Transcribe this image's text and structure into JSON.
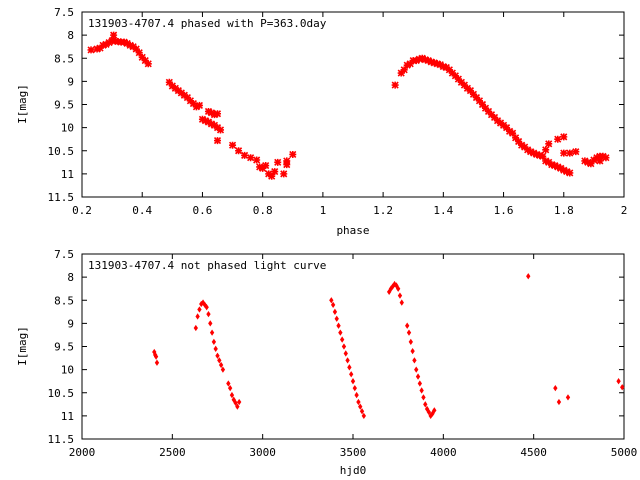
{
  "colors": {
    "points": "#ff0000",
    "axis": "#000000",
    "background": "#ffffff"
  },
  "chart_data": [
    {
      "type": "scatter",
      "title": "131903-4707.4 phased with P=363.0day",
      "xlabel": "phase",
      "ylabel": "I[mag]",
      "xlim": [
        0.2,
        2.0
      ],
      "ylim": [
        7.5,
        11.5
      ],
      "y_inverted": true,
      "grid": false,
      "xticks": [
        0.2,
        0.4,
        0.6,
        0.8,
        1.0,
        1.2,
        1.4,
        1.6,
        1.8,
        2.0
      ],
      "xtick_labels": [
        "0.2",
        "0.4",
        "0.6",
        "0.8",
        "1",
        "1.2",
        "1.4",
        "1.6",
        "1.8",
        "2"
      ],
      "yticks": [
        7.5,
        8,
        8.5,
        9,
        9.5,
        10,
        10.5,
        11,
        11.5
      ],
      "ytick_labels": [
        "7.5",
        "8",
        "8.5",
        "9",
        "9.5",
        "10",
        "10.5",
        "11",
        "11.5"
      ],
      "marker": "cross",
      "points": [
        [
          0.23,
          8.32
        ],
        [
          0.25,
          8.3
        ],
        [
          0.26,
          8.28
        ],
        [
          0.27,
          8.22
        ],
        [
          0.28,
          8.2
        ],
        [
          0.29,
          8.16
        ],
        [
          0.3,
          8.12
        ],
        [
          0.305,
          8.0
        ],
        [
          0.31,
          8.13
        ],
        [
          0.32,
          8.14
        ],
        [
          0.33,
          8.15
        ],
        [
          0.34,
          8.15
        ],
        [
          0.35,
          8.18
        ],
        [
          0.36,
          8.22
        ],
        [
          0.37,
          8.25
        ],
        [
          0.38,
          8.3
        ],
        [
          0.39,
          8.38
        ],
        [
          0.4,
          8.48
        ],
        [
          0.41,
          8.55
        ],
        [
          0.42,
          8.62
        ],
        [
          0.49,
          9.02
        ],
        [
          0.5,
          9.1
        ],
        [
          0.51,
          9.15
        ],
        [
          0.52,
          9.2
        ],
        [
          0.53,
          9.25
        ],
        [
          0.54,
          9.3
        ],
        [
          0.55,
          9.35
        ],
        [
          0.56,
          9.42
        ],
        [
          0.57,
          9.48
        ],
        [
          0.58,
          9.55
        ],
        [
          0.59,
          9.52
        ],
        [
          0.6,
          9.82
        ],
        [
          0.61,
          9.85
        ],
        [
          0.62,
          9.88
        ],
        [
          0.63,
          9.92
        ],
        [
          0.62,
          9.65
        ],
        [
          0.63,
          9.68
        ],
        [
          0.64,
          9.72
        ],
        [
          0.65,
          9.7
        ],
        [
          0.64,
          9.95
        ],
        [
          0.65,
          10.0
        ],
        [
          0.66,
          10.05
        ],
        [
          0.65,
          10.28
        ],
        [
          0.7,
          10.38
        ],
        [
          0.72,
          10.5
        ],
        [
          0.74,
          10.6
        ],
        [
          0.76,
          10.65
        ],
        [
          0.78,
          10.7
        ],
        [
          0.79,
          10.85
        ],
        [
          0.8,
          10.88
        ],
        [
          0.81,
          10.82
        ],
        [
          0.82,
          11.0
        ],
        [
          0.83,
          11.05
        ],
        [
          0.84,
          10.95
        ],
        [
          0.85,
          10.75
        ],
        [
          0.87,
          11.0
        ],
        [
          0.88,
          10.8
        ],
        [
          0.9,
          10.58
        ],
        [
          0.88,
          10.72
        ],
        [
          1.24,
          9.08
        ],
        [
          1.26,
          8.82
        ],
        [
          1.27,
          8.75
        ],
        [
          1.28,
          8.65
        ],
        [
          1.29,
          8.62
        ],
        [
          1.3,
          8.55
        ],
        [
          1.31,
          8.55
        ],
        [
          1.32,
          8.52
        ],
        [
          1.33,
          8.5
        ],
        [
          1.34,
          8.53
        ],
        [
          1.35,
          8.55
        ],
        [
          1.36,
          8.58
        ],
        [
          1.37,
          8.6
        ],
        [
          1.38,
          8.62
        ],
        [
          1.39,
          8.64
        ],
        [
          1.4,
          8.68
        ],
        [
          1.41,
          8.7
        ],
        [
          1.42,
          8.75
        ],
        [
          1.43,
          8.82
        ],
        [
          1.44,
          8.88
        ],
        [
          1.45,
          8.95
        ],
        [
          1.46,
          9.02
        ],
        [
          1.47,
          9.08
        ],
        [
          1.48,
          9.15
        ],
        [
          1.49,
          9.2
        ],
        [
          1.5,
          9.28
        ],
        [
          1.51,
          9.35
        ],
        [
          1.52,
          9.42
        ],
        [
          1.53,
          9.5
        ],
        [
          1.54,
          9.58
        ],
        [
          1.55,
          9.65
        ],
        [
          1.56,
          9.72
        ],
        [
          1.57,
          9.78
        ],
        [
          1.58,
          9.85
        ],
        [
          1.59,
          9.9
        ],
        [
          1.6,
          9.95
        ],
        [
          1.61,
          10.0
        ],
        [
          1.62,
          10.08
        ],
        [
          1.63,
          10.12
        ],
        [
          1.64,
          10.22
        ],
        [
          1.65,
          10.3
        ],
        [
          1.66,
          10.38
        ],
        [
          1.67,
          10.42
        ],
        [
          1.68,
          10.48
        ],
        [
          1.69,
          10.52
        ],
        [
          1.7,
          10.55
        ],
        [
          1.71,
          10.58
        ],
        [
          1.72,
          10.6
        ],
        [
          1.73,
          10.62
        ],
        [
          1.74,
          10.72
        ],
        [
          1.75,
          10.75
        ],
        [
          1.76,
          10.8
        ],
        [
          1.77,
          10.82
        ],
        [
          1.78,
          10.85
        ],
        [
          1.79,
          10.88
        ],
        [
          1.8,
          10.92
        ],
        [
          1.81,
          10.95
        ],
        [
          1.82,
          10.98
        ],
        [
          1.75,
          10.35
        ],
        [
          1.78,
          10.25
        ],
        [
          1.8,
          10.2
        ],
        [
          1.8,
          10.55
        ],
        [
          1.82,
          10.55
        ],
        [
          1.84,
          10.52
        ],
        [
          1.74,
          10.48
        ],
        [
          1.87,
          10.72
        ],
        [
          1.88,
          10.75
        ],
        [
          1.89,
          10.78
        ],
        [
          1.9,
          10.7
        ],
        [
          1.91,
          10.65
        ],
        [
          1.92,
          10.62
        ],
        [
          1.93,
          10.62
        ],
        [
          1.94,
          10.65
        ],
        [
          1.92,
          10.72
        ]
      ]
    },
    {
      "type": "scatter",
      "title": "131903-4707.4 not phased light curve",
      "xlabel": "hjd0",
      "ylabel": "I[mag]",
      "xlim": [
        2000,
        5000
      ],
      "ylim": [
        7.5,
        11.5
      ],
      "y_inverted": true,
      "grid": false,
      "xticks": [
        2000,
        2500,
        3000,
        3500,
        4000,
        4500,
        5000
      ],
      "xtick_labels": [
        "2000",
        "2500",
        "3000",
        "3500",
        "4000",
        "4500",
        "5000"
      ],
      "yticks": [
        7.5,
        8,
        8.5,
        9,
        9.5,
        10,
        10.5,
        11,
        11.5
      ],
      "ytick_labels": [
        "7.5",
        "8",
        "8.5",
        "9",
        "9.5",
        "10",
        "10.5",
        "11",
        "11.5"
      ],
      "marker": "diamond",
      "points": [
        [
          2400,
          9.62
        ],
        [
          2405,
          9.68
        ],
        [
          2410,
          9.72
        ],
        [
          2415,
          9.85
        ],
        [
          2630,
          9.1
        ],
        [
          2640,
          8.85
        ],
        [
          2650,
          8.7
        ],
        [
          2660,
          8.58
        ],
        [
          2670,
          8.55
        ],
        [
          2680,
          8.6
        ],
        [
          2690,
          8.65
        ],
        [
          2700,
          8.8
        ],
        [
          2710,
          9.0
        ],
        [
          2720,
          9.2
        ],
        [
          2730,
          9.4
        ],
        [
          2740,
          9.55
        ],
        [
          2750,
          9.7
        ],
        [
          2760,
          9.8
        ],
        [
          2770,
          9.9
        ],
        [
          2780,
          10.0
        ],
        [
          2810,
          10.3
        ],
        [
          2820,
          10.4
        ],
        [
          2830,
          10.55
        ],
        [
          2840,
          10.65
        ],
        [
          2850,
          10.72
        ],
        [
          2860,
          10.8
        ],
        [
          2870,
          10.7
        ],
        [
          3380,
          8.5
        ],
        [
          3390,
          8.6
        ],
        [
          3400,
          8.75
        ],
        [
          3410,
          8.9
        ],
        [
          3420,
          9.05
        ],
        [
          3430,
          9.2
        ],
        [
          3440,
          9.35
        ],
        [
          3450,
          9.5
        ],
        [
          3460,
          9.65
        ],
        [
          3470,
          9.8
        ],
        [
          3480,
          9.95
        ],
        [
          3490,
          10.1
        ],
        [
          3500,
          10.25
        ],
        [
          3510,
          10.4
        ],
        [
          3520,
          10.55
        ],
        [
          3530,
          10.7
        ],
        [
          3540,
          10.8
        ],
        [
          3550,
          10.9
        ],
        [
          3560,
          11.0
        ],
        [
          3700,
          8.32
        ],
        [
          3710,
          8.25
        ],
        [
          3720,
          8.2
        ],
        [
          3730,
          8.15
        ],
        [
          3740,
          8.18
        ],
        [
          3750,
          8.25
        ],
        [
          3760,
          8.4
        ],
        [
          3770,
          8.55
        ],
        [
          3800,
          9.05
        ],
        [
          3810,
          9.2
        ],
        [
          3820,
          9.4
        ],
        [
          3830,
          9.6
        ],
        [
          3840,
          9.8
        ],
        [
          3850,
          10.0
        ],
        [
          3860,
          10.15
        ],
        [
          3870,
          10.3
        ],
        [
          3880,
          10.45
        ],
        [
          3890,
          10.6
        ],
        [
          3900,
          10.75
        ],
        [
          3910,
          10.85
        ],
        [
          3920,
          10.92
        ],
        [
          3930,
          11.0
        ],
        [
          3940,
          10.95
        ],
        [
          3950,
          10.88
        ],
        [
          4470,
          7.98
        ],
        [
          4620,
          10.4
        ],
        [
          4640,
          10.7
        ],
        [
          4690,
          10.6
        ],
        [
          4970,
          10.25
        ],
        [
          4990,
          10.38
        ]
      ]
    }
  ]
}
